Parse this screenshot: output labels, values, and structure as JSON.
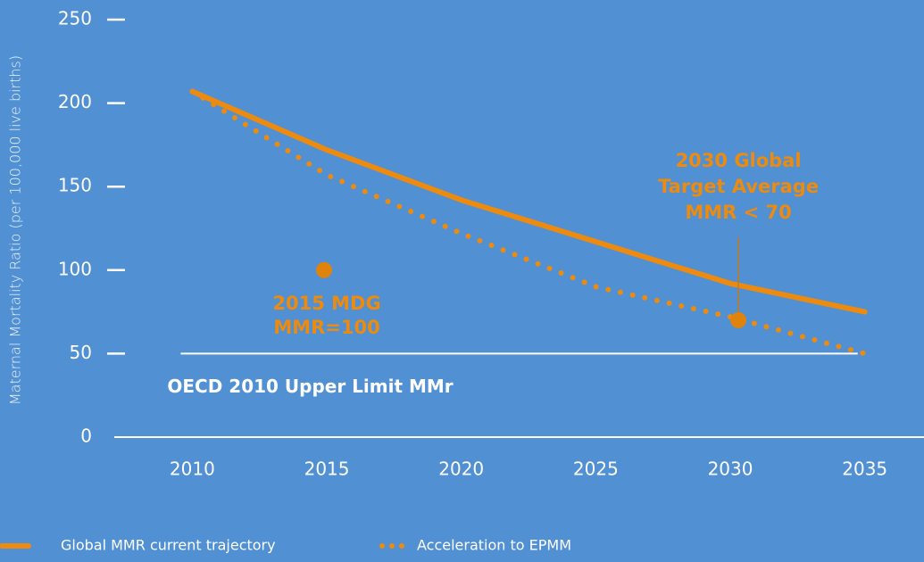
{
  "chart_data": {
    "type": "line",
    "y_label": "Maternal Mortality Ratio (per 100,000 live births)",
    "x": [
      2010,
      2015,
      2020,
      2025,
      2030,
      2035
    ],
    "series": [
      {
        "name": "Global MMR current trajectory",
        "color": "#ec8b0f",
        "style": "solid",
        "values": [
          207,
          172,
          142,
          117,
          92,
          75
        ]
      },
      {
        "name": "Acceleration to EPMM",
        "color": "#ec8b0f",
        "style": "dotted",
        "values": [
          207,
          157,
          122,
          90,
          72,
          50
        ]
      }
    ],
    "xlim": [
      2007.1,
      2037.2
    ],
    "xticks": [
      2010,
      2015,
      2020,
      2025,
      2030,
      2035
    ],
    "ylim": [
      0,
      250
    ],
    "yticks": [
      0,
      50,
      100,
      150,
      200,
      250
    ],
    "reference_line": {
      "value": 50,
      "label": "OECD 2010 Upper Limit MMr",
      "color": "#ffffff"
    },
    "points": [
      {
        "x": 2014.9,
        "y": 100,
        "label": [
          "2015 MDG",
          "MMR=100"
        ],
        "label_position": "below",
        "color": "#e0830c"
      },
      {
        "x": 2030.3,
        "y": 70,
        "label": [
          "2030 Global",
          "Target Average",
          "MMR < 70"
        ],
        "label_position": "above",
        "color": "#e0830c"
      }
    ],
    "legend": "bottom-left"
  }
}
